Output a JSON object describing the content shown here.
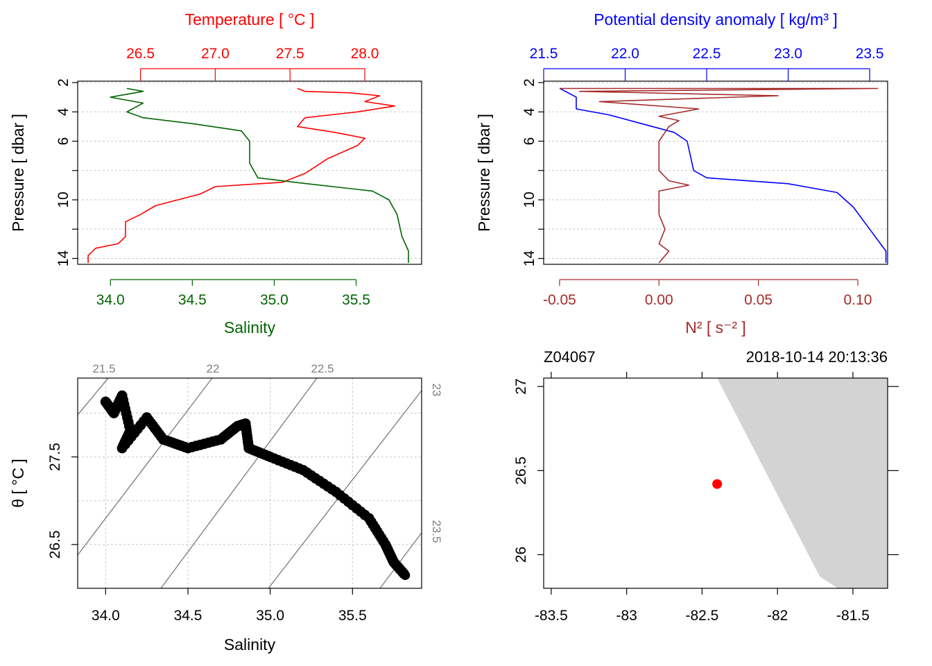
{
  "chart_data": [
    {
      "type": "line",
      "panel": "top-left",
      "x_bottom": {
        "label": "Salinity",
        "ticks": [
          "34.0",
          "34.5",
          "35.0",
          "35.5"
        ],
        "range": [
          33.8,
          35.9
        ],
        "color": "#006400"
      },
      "x_top": {
        "label": "Temperature [ °C ]",
        "ticks": [
          "26.5",
          "27.0",
          "27.5",
          "28.0"
        ],
        "range": [
          26.08,
          28.38
        ],
        "color": "#ff0000"
      },
      "y": {
        "label": "Pressure [ dbar ]",
        "ticks": [
          "2",
          "4",
          "6",
          "10",
          "14"
        ],
        "range": [
          2,
          14.4
        ],
        "reversed": true
      },
      "grid": true,
      "series": [
        {
          "axis": "top",
          "color": "#ff0000",
          "points": [
            [
              27.55,
              2.4
            ],
            [
              27.6,
              2.6
            ],
            [
              27.9,
              2.7
            ],
            [
              28.1,
              2.9
            ],
            [
              28.0,
              3.3
            ],
            [
              28.2,
              3.6
            ],
            [
              27.95,
              4.0
            ],
            [
              27.6,
              4.4
            ],
            [
              27.55,
              5.0
            ],
            [
              27.8,
              5.4
            ],
            [
              28.0,
              5.8
            ],
            [
              27.95,
              6.3
            ],
            [
              27.75,
              7.2
            ],
            [
              27.6,
              8.2
            ],
            [
              27.45,
              8.8
            ],
            [
              27.0,
              9.1
            ],
            [
              26.9,
              9.6
            ],
            [
              26.6,
              10.4
            ],
            [
              26.5,
              11.0
            ],
            [
              26.4,
              11.5
            ],
            [
              26.4,
              12.5
            ],
            [
              26.35,
              13.0
            ],
            [
              26.2,
              13.3
            ],
            [
              26.15,
              13.8
            ],
            [
              26.15,
              14.3
            ]
          ]
        },
        {
          "axis": "bottom",
          "color": "#006400",
          "points": [
            [
              34.1,
              2.4
            ],
            [
              34.2,
              2.6
            ],
            [
              34.0,
              3.0
            ],
            [
              34.2,
              3.4
            ],
            [
              34.1,
              4.0
            ],
            [
              34.2,
              4.4
            ],
            [
              34.5,
              4.8
            ],
            [
              34.8,
              5.3
            ],
            [
              34.85,
              6.0
            ],
            [
              34.85,
              7.5
            ],
            [
              34.9,
              8.5
            ],
            [
              35.2,
              8.9
            ],
            [
              35.6,
              9.4
            ],
            [
              35.7,
              10.0
            ],
            [
              35.75,
              11.0
            ],
            [
              35.78,
              12.5
            ],
            [
              35.82,
              13.5
            ],
            [
              35.82,
              14.3
            ]
          ]
        }
      ]
    },
    {
      "type": "line",
      "panel": "top-right",
      "x_bottom": {
        "label": "N² [ s⁻² ]",
        "ticks": [
          "-0.05",
          "0.00",
          "0.05",
          "0.10"
        ],
        "range": [
          -0.058,
          0.115
        ],
        "color": "#a52a2a"
      },
      "x_top": {
        "label": "Potential density anomaly [ kg/m³ ]",
        "ticks": [
          "21.5",
          "22.0",
          "22.5",
          "23.0",
          "23.5"
        ],
        "range": [
          21.5,
          23.61
        ],
        "color": "#0000ff"
      },
      "y": {
        "label": "Pressure [ dbar ]",
        "ticks": [
          "2",
          "4",
          "6",
          "10",
          "14"
        ],
        "range": [
          2,
          14.4
        ],
        "reversed": true
      },
      "grid": true,
      "series": [
        {
          "axis": "top",
          "color": "#0000ff",
          "points": [
            [
              21.6,
              2.4
            ],
            [
              21.7,
              3.0
            ],
            [
              21.7,
              3.8
            ],
            [
              21.9,
              4.2
            ],
            [
              22.1,
              4.8
            ],
            [
              22.3,
              5.4
            ],
            [
              22.38,
              6.0
            ],
            [
              22.4,
              7.0
            ],
            [
              22.42,
              8.0
            ],
            [
              22.5,
              8.5
            ],
            [
              23.0,
              8.9
            ],
            [
              23.3,
              9.5
            ],
            [
              23.4,
              10.5
            ],
            [
              23.5,
              12.0
            ],
            [
              23.6,
              13.5
            ],
            [
              23.6,
              14.3
            ]
          ]
        },
        {
          "axis": "bottom",
          "color": "#a52a2a",
          "points": [
            [
              -0.05,
              2.4
            ],
            [
              0.11,
              2.4
            ],
            [
              -0.04,
              2.6
            ],
            [
              0.06,
              2.9
            ],
            [
              -0.03,
              3.3
            ],
            [
              0.02,
              3.8
            ],
            [
              0.0,
              4.3
            ],
            [
              0.01,
              4.6
            ],
            [
              0.005,
              5.0
            ],
            [
              0.0,
              6.0
            ],
            [
              0.0,
              8.0
            ],
            [
              0.005,
              8.7
            ],
            [
              0.015,
              9.0
            ],
            [
              0.0,
              9.4
            ],
            [
              0.0,
              11.0
            ],
            [
              0.003,
              12.0
            ],
            [
              0.0,
              13.0
            ],
            [
              0.005,
              13.5
            ],
            [
              0.0,
              14.3
            ]
          ]
        }
      ]
    },
    {
      "type": "scatter",
      "panel": "bottom-left",
      "x": {
        "label": "Salinity",
        "ticks": [
          "34.0",
          "34.5",
          "35.0",
          "35.5"
        ],
        "range": [
          33.83,
          35.92
        ]
      },
      "y": {
        "label": "θ [ °C ]",
        "ticks": [
          "26.5",
          "27.5"
        ],
        "range": [
          26.0,
          28.4
        ]
      },
      "isopycnals": {
        "labels": [
          "21.5",
          "22",
          "22.5",
          "23",
          "23.5"
        ],
        "color": "#808080"
      },
      "grid": true,
      "points": [
        [
          34.0,
          28.13
        ],
        [
          34.05,
          28.0
        ],
        [
          34.1,
          28.2
        ],
        [
          34.15,
          27.8
        ],
        [
          34.1,
          27.6
        ],
        [
          34.25,
          27.95
        ],
        [
          34.35,
          27.7
        ],
        [
          34.5,
          27.6
        ],
        [
          34.7,
          27.7
        ],
        [
          34.8,
          27.85
        ],
        [
          34.85,
          27.88
        ],
        [
          34.87,
          27.6
        ],
        [
          35.0,
          27.5
        ],
        [
          35.2,
          27.35
        ],
        [
          35.4,
          27.1
        ],
        [
          35.6,
          26.8
        ],
        [
          35.7,
          26.5
        ],
        [
          35.75,
          26.3
        ],
        [
          35.82,
          26.15
        ]
      ]
    },
    {
      "type": "map",
      "panel": "bottom-right",
      "station": "Z04067",
      "time": "2018-10-14 20:13:36",
      "x": {
        "ticks": [
          "-83.5",
          "-83",
          "-82.5",
          "-82",
          "-81.5"
        ],
        "range": [
          -83.55,
          -81.27
        ]
      },
      "y": {
        "ticks": [
          "26",
          "26.5",
          "27"
        ],
        "range": [
          25.8,
          27.05
        ]
      },
      "land_color": "#d3d3d3",
      "coastline": [
        [
          -82.4,
          27.05
        ],
        [
          -81.27,
          27.05
        ],
        [
          -81.27,
          25.8
        ],
        [
          -81.6,
          25.8
        ],
        [
          -81.72,
          25.87
        ]
      ],
      "point": {
        "lon": -82.4,
        "lat": 26.42,
        "color": "#ff0000"
      }
    }
  ]
}
